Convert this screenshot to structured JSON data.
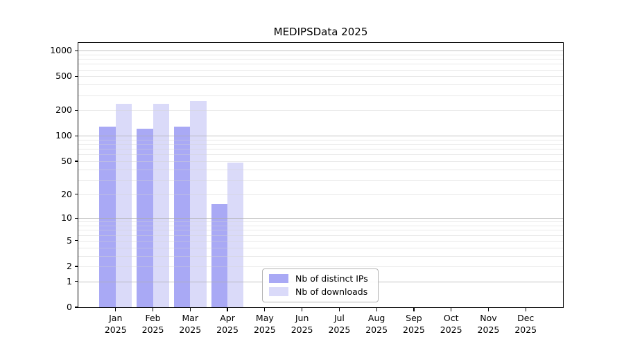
{
  "chart_data": {
    "type": "bar",
    "title": "MEDIPSData 2025",
    "categories": [
      "Jan",
      "Feb",
      "Mar",
      "Apr",
      "May",
      "Jun",
      "Jul",
      "Aug",
      "Sep",
      "Oct",
      "Nov",
      "Dec"
    ],
    "x_tick_year": "2025",
    "series": [
      {
        "name": "Nb of distinct IPs",
        "color": "#a9a9f5",
        "values": [
          128,
          121,
          129,
          15,
          0,
          0,
          0,
          0,
          0,
          0,
          0,
          0
        ]
      },
      {
        "name": "Nb of downloads",
        "color": "#dadaf9",
        "values": [
          240,
          237,
          258,
          48,
          0,
          0,
          0,
          0,
          0,
          0,
          0,
          0
        ]
      }
    ],
    "y_axis": {
      "scale": "log10(1+x)",
      "tick_labels": [
        0,
        1,
        2,
        5,
        10,
        20,
        50,
        100,
        200,
        500,
        1000
      ],
      "major_gridlines": [
        1,
        10,
        100,
        1000
      ],
      "minor_gridlines": [
        2,
        3,
        4,
        5,
        6,
        7,
        8,
        9,
        20,
        30,
        40,
        50,
        60,
        70,
        80,
        90,
        200,
        300,
        400,
        500,
        600,
        700,
        800,
        900
      ],
      "ylim": [
        0,
        1230
      ]
    },
    "legend_position": "lower center",
    "grid": true
  }
}
